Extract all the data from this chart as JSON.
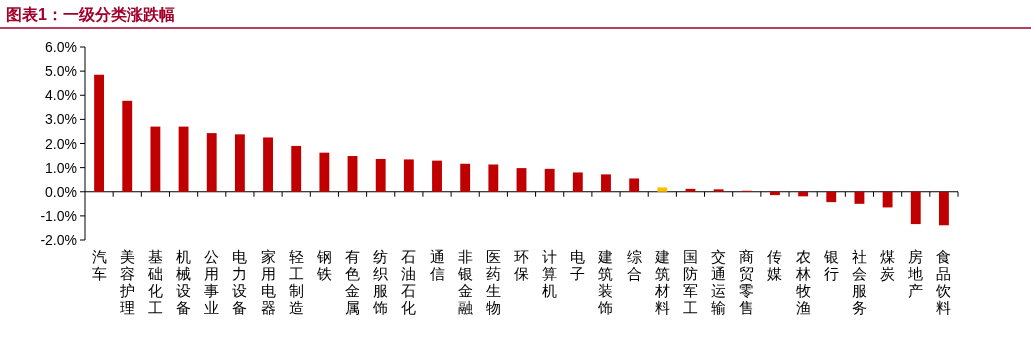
{
  "chart_data": {
    "type": "bar",
    "title": "图表1：一级分类涨跌幅",
    "categories": [
      "汽车",
      "美容护理",
      "基础化工",
      "机械设备",
      "公用事业",
      "电力设备",
      "家用电器",
      "轻工制造",
      "钢铁",
      "有色金属",
      "纺织服饰",
      "石油石化",
      "通信",
      "非银金融",
      "医药生物",
      "环保",
      "计算机",
      "电子",
      "建筑装饰",
      "综合",
      "建筑材料",
      "国防军工",
      "交通运输",
      "商贸零售",
      "传媒",
      "农林牧渔",
      "银行",
      "社会服务",
      "煤炭",
      "房地产",
      "食品饮料"
    ],
    "values": [
      4.85,
      3.77,
      2.7,
      2.7,
      2.43,
      2.38,
      2.25,
      1.9,
      1.62,
      1.48,
      1.36,
      1.34,
      1.29,
      1.16,
      1.13,
      0.98,
      0.95,
      0.8,
      0.72,
      0.55,
      0.18,
      0.12,
      0.1,
      0.04,
      -0.14,
      -0.19,
      -0.43,
      -0.5,
      -0.65,
      -1.34,
      -1.39
    ],
    "colors": [
      "#c00000",
      "#c00000",
      "#c00000",
      "#c00000",
      "#c00000",
      "#c00000",
      "#c00000",
      "#c00000",
      "#c00000",
      "#c00000",
      "#c00000",
      "#c00000",
      "#c00000",
      "#c00000",
      "#c00000",
      "#c00000",
      "#c00000",
      "#c00000",
      "#c00000",
      "#c00000",
      "#ffc000",
      "#c00000",
      "#c00000",
      "#c00000",
      "#c00000",
      "#c00000",
      "#c00000",
      "#c00000",
      "#c00000",
      "#c00000",
      "#c00000"
    ],
    "ylim": [
      -2,
      6
    ],
    "yticks": [
      {
        "value": -2,
        "label": "-2.0%"
      },
      {
        "value": -1,
        "label": "-1.0%"
      },
      {
        "value": 0,
        "label": "0.0%"
      },
      {
        "value": 1,
        "label": "1.0%"
      },
      {
        "value": 2,
        "label": "2.0%"
      },
      {
        "value": 3,
        "label": "3.0%"
      },
      {
        "value": 4,
        "label": "4.0%"
      },
      {
        "value": 5,
        "label": "5.0%"
      },
      {
        "value": 6,
        "label": "6.0%"
      }
    ]
  }
}
